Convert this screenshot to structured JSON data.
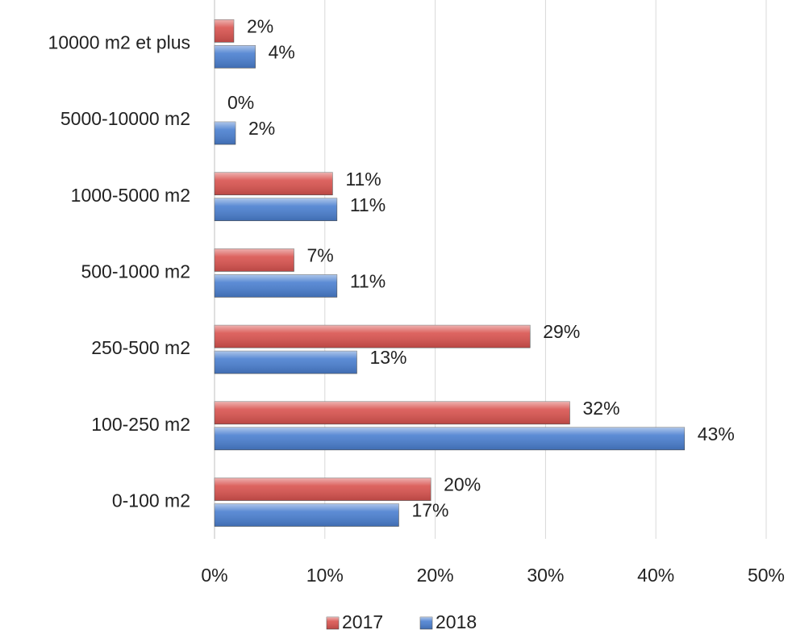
{
  "chart_data": {
    "type": "barh",
    "categories": [
      "10000 m2 et plus",
      "5000-10000 m2",
      "1000-5000 m2",
      "500-1000 m2",
      "250-500 m2",
      "100-250 m2",
      "0-100 m2"
    ],
    "series": [
      {
        "name": "2017",
        "color": "#d9534f",
        "values": [
          1.75,
          0,
          10.7,
          7.2,
          28.6,
          32.2,
          19.6
        ],
        "value_labels": [
          "2%",
          "0%",
          "11%",
          "7%",
          "29%",
          "32%",
          "20%"
        ]
      },
      {
        "name": "2018",
        "color": "#4a7fd0",
        "values": [
          3.7,
          1.9,
          11.1,
          11.1,
          12.9,
          42.6,
          16.7
        ],
        "value_labels": [
          "4%",
          "2%",
          "11%",
          "11%",
          "13%",
          "43%",
          "17%"
        ]
      }
    ],
    "xlim": [
      0,
      50
    ],
    "xticks": [
      {
        "value": 0,
        "label": "0%"
      },
      {
        "value": 10,
        "label": "10%"
      },
      {
        "value": 20,
        "label": "20%"
      },
      {
        "value": 30,
        "label": "30%"
      },
      {
        "value": 40,
        "label": "40%"
      },
      {
        "value": 50,
        "label": "50%"
      }
    ],
    "grid": true,
    "legend": "bottom"
  }
}
